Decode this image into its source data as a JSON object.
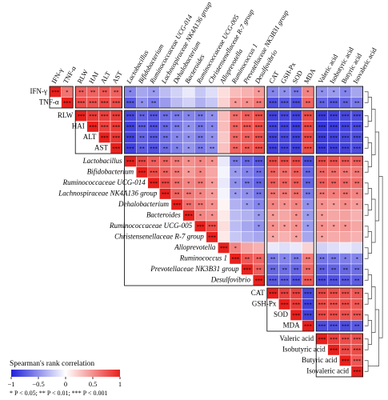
{
  "chart_data": {
    "type": "heatmap",
    "variables": [
      "IFN-γ",
      "TNF-α",
      "RLW",
      "HAI",
      "ALT",
      "AST",
      "Lactobacillus",
      "Bifidobacterium",
      "Ruminococcaceae UCG-014",
      "Lachnospiraceae NK4A136 group",
      "Dehalobacterium",
      "Bacteroides",
      "Ruminococcaceae UCG-005",
      "Christensenellaceae R-7 group",
      "Alloprevotella",
      "Ruminococcus 1",
      "Prevotellaceae NK3B31 group",
      "Desulfovibrio",
      "CAT",
      "GSH-Px",
      "SOD",
      "MDA",
      "Valeric acid",
      "Isobutyric acid",
      "Butyric acid",
      "Isovaleric acid"
    ],
    "values": [
      [
        1,
        0.62,
        0.72,
        0.7,
        0.75,
        0.7,
        -0.55,
        -0.4,
        -0.45,
        -0.3,
        -0.2,
        -0.1,
        -0.25,
        -0.15,
        0.15,
        0.3,
        0.35,
        0.45,
        -0.55,
        -0.5,
        -0.6,
        0.55,
        -0.5,
        -0.45,
        -0.55,
        -0.4
      ],
      [
        1,
        0.8,
        0.78,
        0.82,
        0.8,
        -0.75,
        -0.5,
        -0.6,
        -0.45,
        -0.3,
        -0.2,
        -0.35,
        -0.25,
        0.2,
        0.45,
        0.5,
        0.6,
        -0.8,
        -0.75,
        -0.8,
        0.7,
        -0.7,
        -0.75,
        -0.7,
        -0.6
      ],
      [
        1,
        0.88,
        0.85,
        0.87,
        -0.82,
        -0.7,
        -0.75,
        -0.65,
        -0.6,
        -0.55,
        -0.6,
        -0.5,
        0.3,
        0.65,
        0.72,
        0.78,
        -0.85,
        -0.82,
        -0.85,
        0.8,
        -0.88,
        -0.85,
        -0.82,
        -0.8
      ],
      [
        1,
        0.85,
        0.88,
        -0.85,
        -0.72,
        -0.78,
        -0.68,
        -0.6,
        -0.5,
        -0.62,
        -0.55,
        0.3,
        0.7,
        0.75,
        0.8,
        -0.85,
        -0.85,
        -0.88,
        0.82,
        -0.9,
        -0.88,
        -0.85,
        -0.82
      ],
      [
        1,
        0.9,
        -0.85,
        -0.7,
        -0.75,
        -0.65,
        -0.55,
        -0.5,
        -0.6,
        -0.5,
        0.25,
        0.68,
        0.72,
        0.78,
        -0.85,
        -0.82,
        -0.85,
        0.82,
        -0.88,
        -0.85,
        -0.82,
        -0.8
      ],
      [
        1,
        -0.85,
        -0.72,
        -0.78,
        -0.66,
        -0.58,
        -0.48,
        -0.6,
        -0.52,
        0.28,
        0.7,
        0.74,
        0.8,
        -0.86,
        -0.84,
        -0.86,
        0.8,
        -0.88,
        -0.86,
        -0.84,
        -0.8
      ],
      [
        1,
        0.82,
        0.72,
        0.7,
        0.6,
        0.5,
        0.55,
        0.5,
        -0.1,
        -0.6,
        -0.68,
        -0.75,
        0.82,
        0.8,
        0.82,
        -0.8,
        0.8,
        0.78,
        0.75,
        0.72
      ],
      [
        1,
        0.8,
        0.7,
        0.6,
        0.45,
        0.55,
        0.4,
        -0.05,
        -0.45,
        -0.55,
        -0.65,
        0.7,
        0.65,
        0.72,
        -0.68,
        0.68,
        0.65,
        0.62,
        0.6
      ],
      [
        1,
        0.82,
        0.65,
        0.55,
        0.6,
        0.45,
        -0.1,
        -0.5,
        -0.6,
        -0.7,
        0.72,
        0.7,
        0.74,
        -0.7,
        0.72,
        0.7,
        0.68,
        0.65
      ],
      [
        1,
        0.7,
        0.6,
        0.55,
        0.45,
        -0.05,
        -0.45,
        -0.5,
        -0.62,
        0.62,
        0.6,
        0.65,
        -0.6,
        0.6,
        0.58,
        0.62,
        0.55
      ],
      [
        1,
        0.65,
        0.6,
        0.5,
        0.05,
        -0.35,
        -0.45,
        -0.55,
        0.55,
        0.5,
        0.55,
        -0.5,
        0.5,
        0.45,
        0.52,
        0.45
      ],
      [
        1,
        0.55,
        0.5,
        0.1,
        -0.3,
        -0.35,
        -0.45,
        0.45,
        0.4,
        0.5,
        -0.45,
        0.45,
        0.4,
        0.42,
        0.35
      ],
      [
        1,
        0.8,
        0.15,
        -0.3,
        -0.4,
        -0.5,
        0.5,
        0.45,
        0.5,
        -0.45,
        0.5,
        0.45,
        0.48,
        0.4
      ],
      [
        1,
        0.1,
        -0.25,
        -0.35,
        -0.4,
        0.4,
        0.35,
        0.42,
        -0.4,
        0.42,
        0.38,
        0.4,
        0.35
      ],
      [
        1,
        0.55,
        0.4,
        0.35,
        -0.1,
        -0.15,
        -0.1,
        0.2,
        -0.2,
        -0.15,
        -0.1,
        -0.15
      ],
      [
        1,
        0.75,
        0.7,
        -0.6,
        -0.55,
        -0.6,
        0.6,
        -0.62,
        -0.6,
        -0.58,
        -0.55
      ],
      [
        1,
        0.72,
        -0.68,
        -0.65,
        -0.7,
        0.68,
        -0.72,
        -0.7,
        -0.68,
        -0.65
      ],
      [
        1,
        -0.75,
        -0.72,
        -0.78,
        0.75,
        -0.8,
        -0.78,
        -0.75,
        -0.72
      ],
      [
        1,
        0.85,
        0.85,
        -0.82,
        0.82,
        0.8,
        0.78,
        0.75
      ],
      [
        1,
        0.88,
        -0.85,
        0.8,
        0.78,
        0.8,
        0.75
      ],
      [
        1,
        -0.85,
        0.82,
        0.8,
        0.78,
        0.76
      ],
      [
        1,
        -0.8,
        -0.78,
        -0.8,
        -0.75
      ],
      [
        1,
        0.85,
        0.8,
        0.78
      ],
      [
        1,
        0.82,
        0.8
      ],
      [
        1,
        0.75
      ],
      [
        1
      ]
    ],
    "stars": [
      [
        "***",
        "*",
        "**",
        "**",
        "**",
        "**",
        "*",
        null,
        "*",
        null,
        null,
        null,
        null,
        null,
        null,
        null,
        null,
        "*",
        "*",
        "*",
        "**",
        "*",
        "*",
        "*",
        "*",
        null
      ],
      [
        "***",
        "***",
        "***",
        "***",
        "***",
        "***",
        "*",
        "**",
        null,
        null,
        null,
        null,
        null,
        null,
        "*",
        "*",
        "**",
        "***",
        "***",
        "***",
        "**",
        "**",
        "***",
        "**",
        "**"
      ],
      [
        "***",
        "***",
        "***",
        "***",
        "***",
        "**",
        "***",
        "**",
        "**",
        "*",
        "**",
        "*",
        null,
        "**",
        "**",
        "***",
        "***",
        "***",
        "***",
        "***",
        "***",
        "***",
        "***",
        "***"
      ],
      [
        "***",
        "***",
        "***",
        "***",
        "***",
        "***",
        "**",
        "**",
        "*",
        "**",
        "*",
        null,
        "**",
        "***",
        "***",
        "***",
        "***",
        "***",
        "***",
        "***",
        "***",
        "***",
        "***"
      ],
      [
        "***",
        "***",
        "***",
        "**",
        "***",
        "**",
        "*",
        "*",
        "**",
        "*",
        null,
        "**",
        "**",
        "***",
        "***",
        "***",
        "***",
        "***",
        "***",
        "***",
        "***",
        "***"
      ],
      [
        "***",
        "***",
        "**",
        "***",
        "**",
        "*",
        "*",
        "**",
        "**",
        null,
        "**",
        "**",
        "***",
        "***",
        "***",
        "***",
        "***",
        "***",
        "***",
        "***",
        "***"
      ],
      [
        "***",
        "***",
        "**",
        "**",
        "**",
        "*",
        "*",
        "*",
        null,
        "**",
        "**",
        "***",
        "***",
        "***",
        "***",
        "***",
        "***",
        "***",
        "***",
        "***"
      ],
      [
        "***",
        "***",
        "**",
        "**",
        "*",
        "*",
        null,
        null,
        "*",
        "*",
        "**",
        "**",
        "**",
        "**",
        "**",
        "**",
        "**",
        "**",
        "**"
      ],
      [
        "***",
        "***",
        "**",
        "*",
        "**",
        "*",
        null,
        "*",
        "**",
        "**",
        "**",
        "**",
        "**",
        "**",
        "**",
        "**",
        "**",
        "**"
      ],
      [
        "***",
        "**",
        "**",
        "*",
        "*",
        null,
        "*",
        "*",
        "**",
        "**",
        "**",
        "**",
        "**",
        "**",
        "*",
        "**",
        "*"
      ],
      [
        "***",
        "**",
        "**",
        "*",
        null,
        null,
        "*",
        "*",
        "*",
        "*",
        "*",
        "*",
        "*",
        "*",
        "*",
        "*"
      ],
      [
        "***",
        "*",
        "*",
        null,
        null,
        null,
        "*",
        "*",
        null,
        "*",
        "*",
        "*",
        null,
        null,
        null
      ],
      [
        "***",
        "***",
        null,
        null,
        null,
        "*",
        "*",
        "*",
        "*",
        "*",
        "*",
        "*",
        "*",
        null
      ],
      [
        "***",
        null,
        null,
        null,
        null,
        "*",
        null,
        "*",
        null,
        "*",
        null,
        null,
        null
      ],
      [
        "***",
        "*",
        null,
        null,
        null,
        null,
        null,
        null,
        null,
        null,
        null,
        null
      ],
      [
        "***",
        "**",
        "**",
        "**",
        "*",
        "**",
        "**",
        "**",
        "**",
        "*",
        "*"
      ],
      [
        "***",
        "**",
        "**",
        "**",
        "**",
        "**",
        "**",
        "**",
        "**",
        "**"
      ],
      [
        "***",
        "***",
        "***",
        "***",
        "***",
        "***",
        "***",
        "***",
        "**"
      ],
      [
        "***",
        "***",
        "***",
        "***",
        "***",
        "***",
        "***",
        "**"
      ],
      [
        "***",
        "***",
        "***",
        "***",
        "***",
        "***",
        "**"
      ],
      [
        "***",
        "***",
        "***",
        "***",
        "***",
        "***"
      ],
      [
        "***",
        "***",
        "***",
        "***",
        "**"
      ],
      [
        "***",
        "***",
        "***",
        "***"
      ],
      [
        "***",
        "***",
        "***"
      ],
      [
        "***",
        "***"
      ],
      [
        "***"
      ]
    ],
    "legend_title": "Spearman's rank correlation",
    "clim": [
      -1,
      1
    ],
    "colorbar_ticks": [
      {
        "value": -1,
        "label": "−1"
      },
      {
        "value": -0.5,
        "label": "−0.5"
      },
      0,
      0.5,
      1
    ],
    "colors": [
      "#2020d8",
      "#ffffff",
      "#e8201c"
    ],
    "footnote": "* P < 0.05; ** P < 0.01; *** P < 0.001"
  }
}
